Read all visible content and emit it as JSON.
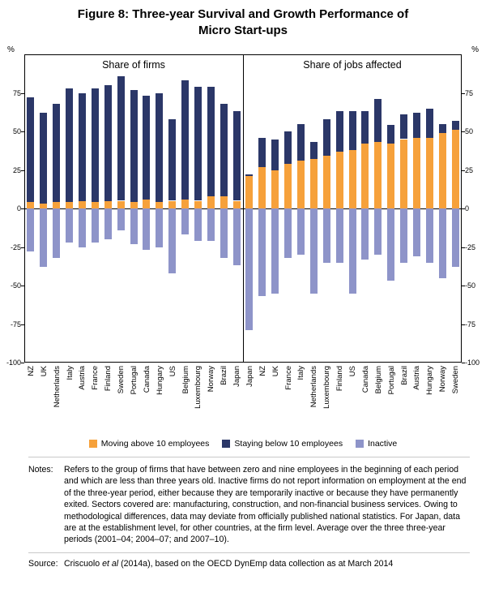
{
  "axis_unit": "%",
  "legend": [
    {
      "label": "Moving above 10 employees",
      "color": "#F6A13B"
    },
    {
      "label": "Staying below 10 employees",
      "color": "#2B3768"
    },
    {
      "label": "Inactive",
      "color": "#8E94C9"
    }
  ],
  "notes": {
    "label": "Notes:",
    "text": "Refers to the group of firms that have between zero and nine employees in the beginning of each period and which are less than three years old. Inactive firms do not report information on employment at the end of the three-year period, either because they are temporarily inactive or because they have permanently exited. Sectors covered are: manufacturing, construction, and non-financial business services. Owing to methodological differences, data may deviate from officially published national statistics. For Japan, data are at the establishment level, for other countries, at the firm level. Average over the three three-year periods (2001–04; 2004–07; and 2007–10)."
  },
  "source": {
    "label": "Source:",
    "pre": "Criscuolo ",
    "italic": "et al",
    "post": " (2014a), based on the OECD DynEmp data collection as at March 2014"
  },
  "chart_data": {
    "type": "bar",
    "stacked": true,
    "title": "Figure 8: Three-year Survival and Growth Performance of Micro Start-ups",
    "y_axis_unit": "%",
    "ylim": [
      -100,
      100
    ],
    "yticks": [
      75,
      50,
      25,
      0,
      -25,
      -50,
      -75,
      -100
    ],
    "grid": "zero-line-only",
    "legend_position": "bottom",
    "series_colors": [
      "#F6A13B",
      "#2B3768",
      "#8E94C9"
    ],
    "series_names": [
      "Moving above 10 employees",
      "Staying below 10 employees",
      "Inactive"
    ],
    "panels": [
      {
        "title": "Share of firms",
        "categories": [
          "NZ",
          "UK",
          "Netherlands",
          "Italy",
          "Austria",
          "France",
          "Finland",
          "Sweden",
          "Portugal",
          "Canada",
          "Hungary",
          "US",
          "Belgium",
          "Luxembourg",
          "Norway",
          "Brazil",
          "Japan"
        ],
        "series": [
          {
            "name": "Moving above 10 employees",
            "values": [
              4,
              3,
              4,
              4,
              5,
              4,
              5,
              5,
              4,
              6,
              4,
              5,
              6,
              5,
              8,
              8,
              5
            ]
          },
          {
            "name": "Staying below 10 employees",
            "values": [
              68,
              59,
              64,
              74,
              70,
              74,
              75,
              81,
              73,
              67,
              71,
              53,
              77,
              74,
              71,
              60,
              58
            ]
          },
          {
            "name": "Inactive",
            "values": [
              -28,
              -38,
              -32,
              -22,
              -25,
              -22,
              -20,
              -14,
              -23,
              -27,
              -25,
              -42,
              -17,
              -21,
              -21,
              -32,
              -37
            ]
          }
        ]
      },
      {
        "title": "Share of jobs affected",
        "categories": [
          "Japan",
          "NZ",
          "UK",
          "France",
          "Italy",
          "Netherlands",
          "Luxembourg",
          "Finland",
          "US",
          "Canada",
          "Belgium",
          "Portugal",
          "Brazil",
          "Austria",
          "Hungary",
          "Norway",
          "Sweden"
        ],
        "series": [
          {
            "name": "Moving above 10 employees",
            "values": [
              21,
              27,
              25,
              29,
              31,
              32,
              34,
              37,
              38,
              42,
              43,
              42,
              45,
              46,
              46,
              49,
              51
            ]
          },
          {
            "name": "Staying below 10 employees",
            "values": [
              1,
              19,
              20,
              21,
              24,
              11,
              24,
              26,
              25,
              21,
              28,
              12,
              16,
              16,
              19,
              6,
              6
            ]
          },
          {
            "name": "Inactive",
            "values": [
              -79,
              -57,
              -55,
              -32,
              -30,
              -55,
              -35,
              -35,
              -55,
              -33,
              -30,
              -47,
              -35,
              -31,
              -35,
              -45,
              -38
            ]
          }
        ]
      }
    ]
  }
}
